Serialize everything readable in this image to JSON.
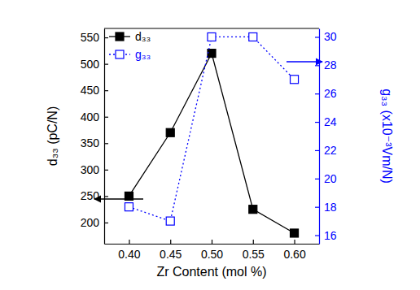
{
  "chart_data": {
    "type": "line",
    "xlabel": "Zr Content (mol %)",
    "ylabel": "d₃₃ (pC/N)",
    "y2label": "g₃₃ (x10⁻³Vm/N)",
    "x": [
      0.4,
      0.45,
      0.5,
      0.55,
      0.6
    ],
    "xlim": [
      0.37,
      0.63
    ],
    "xticks": [
      {
        "value": 0.4,
        "label": "0.40"
      },
      0.45,
      {
        "value": 0.5,
        "label": "0.50"
      },
      0.55,
      {
        "value": 0.6,
        "label": "0.60"
      }
    ],
    "ylim": [
      160,
      567
    ],
    "yticks": [
      200,
      250,
      300,
      350,
      400,
      450,
      500,
      550
    ],
    "y2lim": [
      15.4,
      30.6
    ],
    "y2ticks": [
      16,
      18,
      20,
      22,
      24,
      26,
      28,
      30
    ],
    "legend": "upper left",
    "series": [
      {
        "name": "d₃₃",
        "color": "#000000",
        "marker": "square",
        "line_style": "solid",
        "values": [
          250,
          370,
          520,
          225,
          180
        ]
      },
      {
        "name": "g₃₃",
        "color": "#0000ff",
        "marker": "square-open",
        "line_style": "dotted",
        "axis": "y2",
        "values": [
          18,
          17,
          30,
          30,
          27
        ]
      }
    ]
  }
}
